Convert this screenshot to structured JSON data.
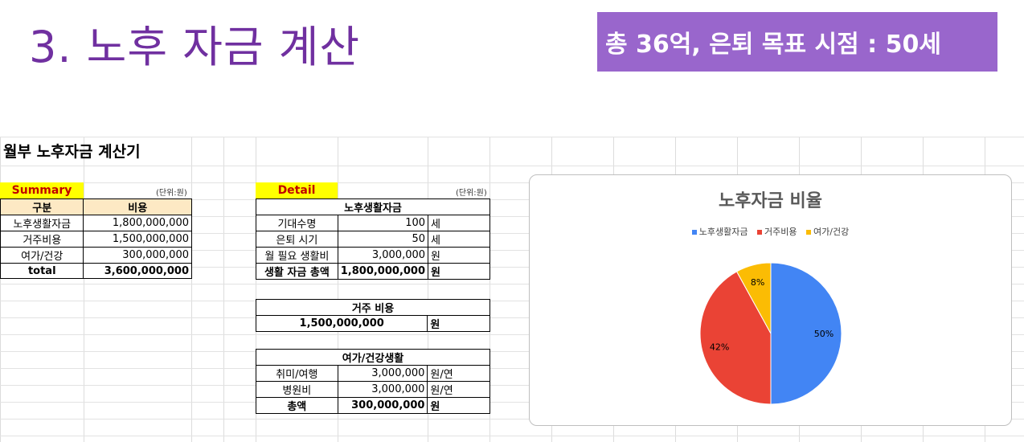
{
  "slide": {
    "title": "3. 노후 자금 계산",
    "goal": "총 36억, 은퇴 목표 시점 : 50세"
  },
  "sheet": {
    "title": "월부 노후자금 계산기"
  },
  "summary": {
    "label": "Summary",
    "unit": "(단위:원)",
    "headers": [
      "구분",
      "비용"
    ],
    "rows": [
      {
        "name": "노후생활자금",
        "value": "1,800,000,000"
      },
      {
        "name": "거주비용",
        "value": "1,500,000,000"
      },
      {
        "name": "여가/건강",
        "value": "300,000,000"
      }
    ],
    "total": {
      "name": "total",
      "value": "3,600,000,000"
    }
  },
  "detail": {
    "label": "Detail",
    "unit": "(단위:원)",
    "living": {
      "title": "노후생활자금",
      "rows": [
        {
          "name": "기대수명",
          "value": "100",
          "unit": "세"
        },
        {
          "name": "은퇴 시기",
          "value": "50",
          "unit": "세"
        },
        {
          "name": "월 필요 생활비",
          "value": "3,000,000",
          "unit": "원"
        },
        {
          "name": "생활 자금 총액",
          "value": "1,800,000,000",
          "unit": "원"
        }
      ]
    },
    "housing": {
      "title": "거주 비용",
      "value": "1,500,000,000",
      "unit": "원"
    },
    "leisure": {
      "title": "여가/건강생활",
      "rows": [
        {
          "name": "취미/여행",
          "value": "3,000,000",
          "unit": "원/연"
        },
        {
          "name": "병원비",
          "value": "3,000,000",
          "unit": "원/연"
        },
        {
          "name": "총액",
          "value": "300,000,000",
          "unit": "원"
        }
      ]
    }
  },
  "chart_data": {
    "type": "pie",
    "title": "노후자금 비율",
    "categories": [
      "노후생활자금",
      "거주비용",
      "여가/건강"
    ],
    "values": [
      50,
      42,
      8
    ],
    "labels": [
      "50%",
      "42%",
      "8%"
    ],
    "colors": [
      "#4285f4",
      "#ea4335",
      "#fbbc04"
    ],
    "legend": "top"
  }
}
